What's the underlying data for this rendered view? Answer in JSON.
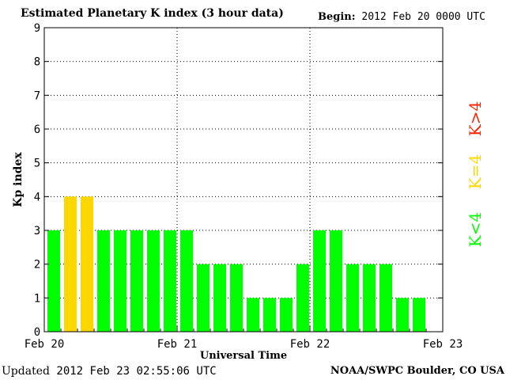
{
  "header": {
    "title": "Estimated Planetary K index (3 hour data)",
    "begin_label": "Begin:",
    "begin_value": "2012 Feb 20 0000 UTC"
  },
  "footer": {
    "updated_label": "Updated",
    "updated_value": "2012 Feb 23 02:55:06 UTC",
    "credit": "NOAA/SWPC Boulder, CO USA"
  },
  "legend": [
    {
      "label": "K<4",
      "color": "#00ff00"
    },
    {
      "label": "K=4",
      "color": "#ffd700"
    },
    {
      "label": "K>4",
      "color": "#ff2000"
    }
  ],
  "chart_data": {
    "type": "bar",
    "title": "Estimated Planetary K index (3 hour data)",
    "xlabel": "Universal Time",
    "ylabel": "Kp index",
    "ylim": [
      0,
      9
    ],
    "yticks": [
      "0",
      "1",
      "2",
      "3",
      "4",
      "5",
      "6",
      "7",
      "8",
      "9"
    ],
    "xticks": [
      "Feb 20",
      "Feb 21",
      "Feb 22",
      "Feb 23"
    ],
    "grid": true,
    "values": [
      3,
      4,
      4,
      3,
      3,
      3,
      3,
      3,
      3,
      2,
      2,
      2,
      1,
      1,
      1,
      2,
      3,
      3,
      2,
      2,
      2,
      1,
      1
    ],
    "colors": {
      "below": "#00ff00",
      "equal": "#ffd700",
      "above": "#ff2000"
    }
  }
}
